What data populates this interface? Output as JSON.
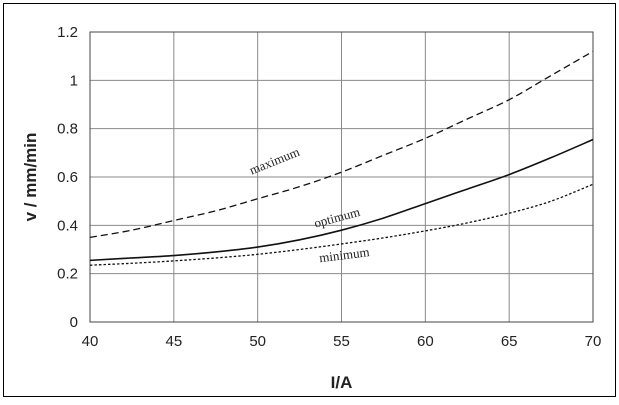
{
  "chart_data": {
    "type": "line",
    "title": "",
    "xlabel": "I/A",
    "ylabel": "v / mm/min",
    "xlim": [
      40,
      70
    ],
    "ylim": [
      0,
      1.2
    ],
    "xticks": [
      "40",
      "45",
      "50",
      "55",
      "60",
      "65",
      "70"
    ],
    "yticks": [
      "0",
      "0.2",
      "0.4",
      "0.6",
      "0.8",
      "1",
      "1.2"
    ],
    "grid": true,
    "legend": "none",
    "series": [
      {
        "name": "maximum",
        "style": "dashed",
        "x": [
          40,
          42.5,
          45,
          47.5,
          50,
          52.5,
          55,
          57.5,
          60,
          62.5,
          65,
          67.5,
          70
        ],
        "y": [
          0.35,
          0.38,
          0.42,
          0.46,
          0.51,
          0.56,
          0.62,
          0.69,
          0.76,
          0.84,
          0.92,
          1.02,
          1.12
        ]
      },
      {
        "name": "optimum",
        "style": "solid",
        "x": [
          40,
          42.5,
          45,
          47.5,
          50,
          52.5,
          55,
          57.5,
          60,
          62.5,
          65,
          67.5,
          70
        ],
        "y": [
          0.255,
          0.265,
          0.275,
          0.29,
          0.31,
          0.34,
          0.38,
          0.43,
          0.49,
          0.55,
          0.61,
          0.68,
          0.755
        ]
      },
      {
        "name": "minimum",
        "style": "dotted",
        "x": [
          40,
          42.5,
          45,
          47.5,
          50,
          52.5,
          55,
          57.5,
          60,
          62.5,
          65,
          67.5,
          70
        ],
        "y": [
          0.235,
          0.243,
          0.253,
          0.265,
          0.28,
          0.3,
          0.323,
          0.348,
          0.377,
          0.41,
          0.45,
          0.5,
          0.57
        ]
      }
    ],
    "annotations": [
      {
        "text": "maximum",
        "x": 51.1,
        "y": 0.65,
        "rotate": -22
      },
      {
        "text": "optimum",
        "x": 54.8,
        "y": 0.415,
        "rotate": -15
      },
      {
        "text": "minimum",
        "x": 55.2,
        "y": 0.26,
        "rotate": -7
      }
    ]
  }
}
